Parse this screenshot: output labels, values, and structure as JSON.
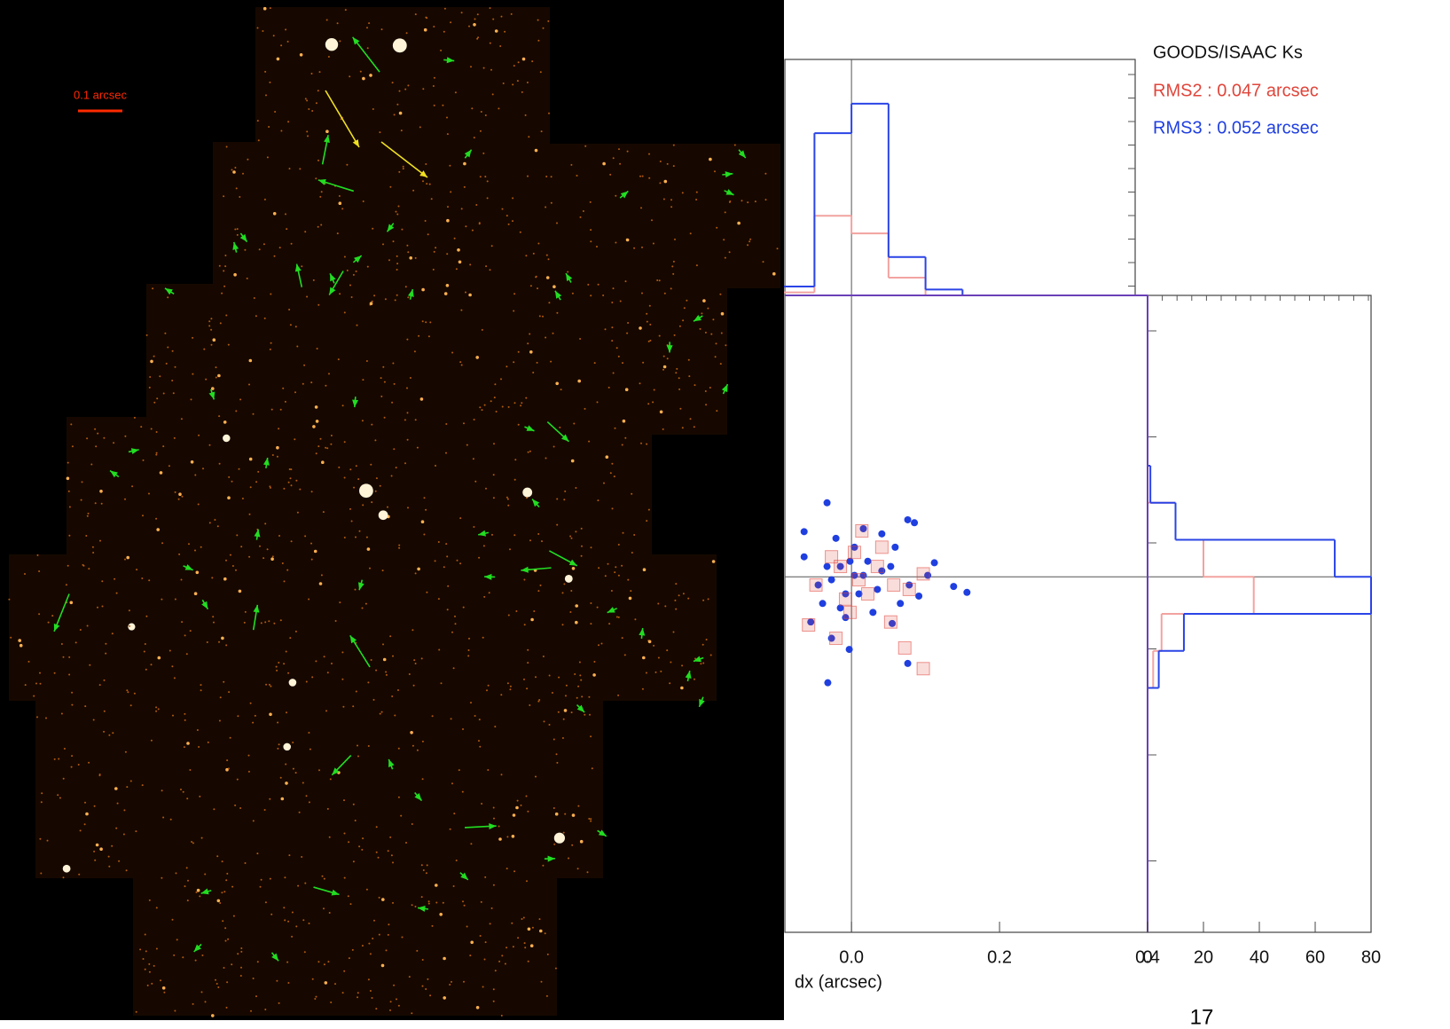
{
  "image": {
    "scale_label": "0.1 arcsec"
  },
  "page_number": "17",
  "chart_data": [
    {
      "type": "scatter",
      "title": "GOODS/ISAAC Ks",
      "x_label": "dx (arcsec)",
      "xlim": [
        -0.09,
        0.4
      ],
      "ylim": [
        -0.48,
        0.38
      ],
      "xticks": [
        {
          "value": 0,
          "label": "0.0"
        },
        {
          "value": 0.2,
          "label": "0.2"
        },
        {
          "value": 0.4,
          "label": "0.4"
        }
      ],
      "series": [
        {
          "name": "RMS2 : 0.047 arcsec",
          "color": "#e0453a",
          "marker": "square",
          "x": [
            -0.058,
            -0.021,
            0.014,
            0.053,
            0.072,
            0.097,
            0.078,
            0.097,
            -0.048,
            -0.015,
            0.01,
            0.035,
            -0.008,
            0.022,
            -0.027,
            0.004,
            0.041,
            0.057,
            -0.002
          ],
          "values": [
            -0.065,
            -0.083,
            0.062,
            -0.061,
            -0.096,
            -0.124,
            -0.017,
            0.004,
            -0.011,
            0.014,
            -0.004,
            0.014,
            -0.03,
            -0.023,
            0.027,
            0.033,
            0.04,
            -0.011,
            -0.048
          ]
        },
        {
          "name": "RMS3 : 0.052 arcsec",
          "color": "#1f3fe0",
          "marker": "circle",
          "x": [
            -0.064,
            -0.033,
            0.076,
            0.085,
            0.112,
            0.138,
            0.156,
            -0.032,
            0.076,
            0.055,
            -0.003,
            -0.027,
            -0.055,
            -0.064,
            0.016,
            0.041,
            0.059,
            0.103,
            0.078,
            0.066,
            0.029,
            -0.008,
            -0.039,
            -0.045,
            -0.015,
            0.004,
            0.022,
            0.041,
            -0.021,
            0.004,
            0.035,
            -0.027,
            0.01,
            0.053,
            -0.008,
            -0.033,
            0.016,
            -0.002,
            -0.015,
            0.091
          ],
          "values": [
            0.061,
            0.1,
            0.077,
            0.073,
            0.019,
            -0.013,
            -0.021,
            -0.143,
            -0.117,
            -0.063,
            -0.098,
            -0.083,
            -0.061,
            0.027,
            0.065,
            0.058,
            0.04,
            0.002,
            -0.011,
            -0.036,
            -0.048,
            -0.055,
            -0.036,
            -0.011,
            0.014,
            0.002,
            0.021,
            0.008,
            0.052,
            0.04,
            -0.017,
            -0.004,
            -0.023,
            0.014,
            -0.023,
            0.014,
            0.002,
            0.021,
            -0.042,
            -0.026
          ]
        }
      ]
    },
    {
      "type": "histogram",
      "orientation": "vertical",
      "xlim": [
        -0.09,
        0.4
      ],
      "ylim": [
        0,
        80
      ],
      "bins": [
        -0.1,
        -0.05,
        0,
        0.05,
        0.1,
        0.15
      ],
      "series": [
        {
          "color": "#f2a3a0",
          "values": [
            1,
            27,
            21,
            6,
            0
          ]
        },
        {
          "color": "#2a44e6",
          "values": [
            3,
            55,
            65,
            13,
            2
          ]
        }
      ]
    },
    {
      "type": "histogram",
      "orientation": "horizontal",
      "xlim": [
        0,
        80
      ],
      "ylim": [
        -0.48,
        0.38
      ],
      "xticks": [
        0,
        20,
        40,
        60,
        80
      ],
      "bins": [
        -0.15,
        -0.1,
        -0.05,
        0,
        0.05,
        0.1,
        0.15
      ],
      "series": [
        {
          "color": "#f2a3a0",
          "values": [
            2,
            5,
            38,
            20,
            10,
            0
          ]
        },
        {
          "color": "#2a44e6",
          "values": [
            4,
            13,
            80,
            67,
            10,
            1
          ]
        }
      ]
    }
  ]
}
